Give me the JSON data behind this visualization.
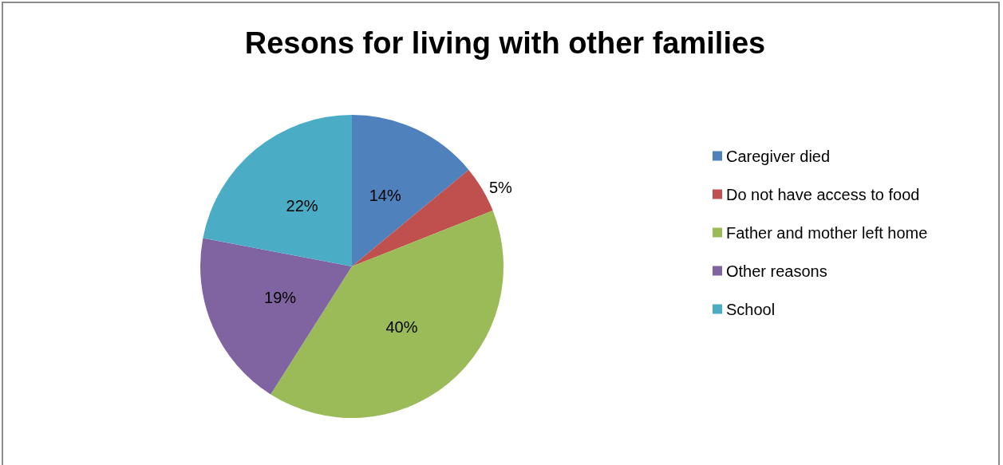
{
  "chart_data": {
    "type": "pie",
    "title": "Resons for living with other families",
    "categories": [
      "Caregiver died",
      "Do not have access to food",
      "Father and mother left home",
      "Other reasons",
      "School"
    ],
    "values": [
      14,
      5,
      40,
      19,
      22
    ],
    "colors": [
      "#4f81bd",
      "#c0504d",
      "#9bbb59",
      "#8064a2",
      "#4bacc6"
    ],
    "value_labels": [
      "14%",
      "5%",
      "40%",
      "19%",
      "22%"
    ],
    "legend": "right"
  }
}
